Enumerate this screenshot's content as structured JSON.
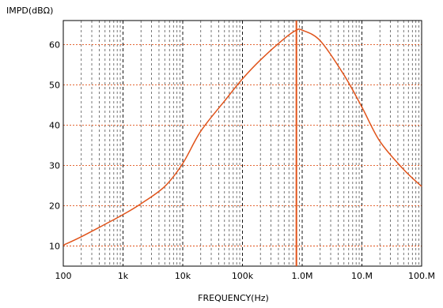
{
  "chart_data": {
    "type": "line",
    "ylabel": "IMPD(dBΩ)",
    "xlabel": "FREQUENCY(Hz)",
    "x_scale": "log",
    "xlim": [
      100,
      100000000
    ],
    "ylim": [
      5,
      66
    ],
    "grid": true,
    "x_ticks": [
      100,
      1000,
      10000,
      100000,
      1000000,
      10000000,
      100000000
    ],
    "x_tick_labels": [
      "100",
      "1k",
      "10k",
      "100k",
      "1.0M",
      "10.M",
      "100.M"
    ],
    "y_ticks": [
      10,
      20,
      30,
      40,
      50,
      60
    ],
    "y_tick_labels": [
      "10",
      "20",
      "30",
      "40",
      "50",
      "60"
    ],
    "marker": {
      "x": 800000
    },
    "colors": {
      "series": "#e0531a",
      "marker": "#e0531a",
      "grid_major": "#e0531a",
      "grid_minor": "#555555"
    },
    "series": [
      {
        "x": [
          100,
          200,
          500,
          1000,
          2000,
          5000,
          10000,
          20000,
          50000,
          100000,
          200000,
          500000,
          800000,
          1000000,
          2000000,
          5000000,
          10000000,
          20000000,
          50000000,
          100000000
        ],
        "values": [
          10.2,
          12.3,
          15.4,
          17.8,
          20.5,
          24.8,
          30.5,
          38.5,
          46.0,
          51.5,
          56.2,
          61.5,
          63.6,
          63.6,
          61.0,
          52.5,
          44.5,
          36.0,
          29.0,
          24.8
        ]
      }
    ]
  }
}
